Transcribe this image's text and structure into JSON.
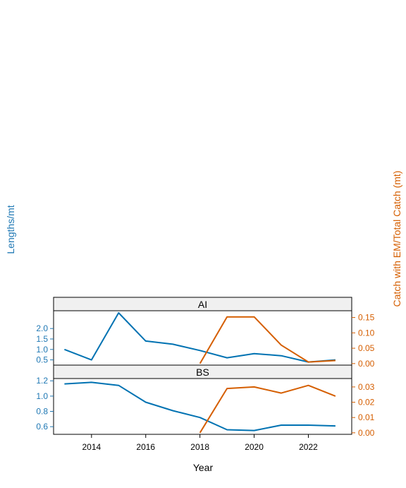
{
  "colors": {
    "left_axis": "#1f78b4",
    "right_axis": "#d55e00",
    "blue_series": "#0072b2",
    "orange_series": "#d55e00",
    "strip_bg": "#f0f0f0"
  },
  "axis_titles": {
    "x": "Year",
    "y_left": "Lengths/mt",
    "y_right": "Catch with EM/Total Catch (mt)"
  },
  "chart_data": [
    {
      "type": "line",
      "panel": "AI",
      "x": [
        2013,
        2014,
        2015,
        2016,
        2017,
        2018,
        2019,
        2020,
        2021,
        2022,
        2023
      ],
      "xlim": [
        2012.6,
        2023.6
      ],
      "x_ticks": [
        "2014",
        "2016",
        "2018",
        "2020",
        "2022"
      ],
      "left_axis": {
        "label": "Lengths/mt",
        "ylim": [
          0.25,
          2.85
        ],
        "ticks": [
          "0.5",
          "1.0",
          "1.5",
          "2.0"
        ]
      },
      "right_axis": {
        "label": "Catch with EM/Total Catch (mt)",
        "ylim": [
          -0.005,
          0.172
        ],
        "ticks": [
          "0.00",
          "0.05",
          "0.10",
          "0.15"
        ]
      },
      "series": [
        {
          "axis": "left",
          "x": [
            2013,
            2014,
            2015,
            2016,
            2017,
            2018,
            2019,
            2020,
            2021,
            2022,
            2023
          ],
          "values": [
            1.0,
            0.5,
            2.75,
            1.4,
            1.25,
            0.95,
            0.6,
            0.8,
            0.7,
            0.4,
            0.5
          ]
        },
        {
          "axis": "right",
          "x": [
            2018,
            2019,
            2020,
            2021,
            2022,
            2023
          ],
          "values": [
            0.0,
            0.152,
            0.152,
            0.06,
            0.005,
            0.01
          ]
        }
      ]
    },
    {
      "type": "line",
      "panel": "BS",
      "x": [
        2013,
        2014,
        2015,
        2016,
        2017,
        2018,
        2019,
        2020,
        2021,
        2022,
        2023
      ],
      "xlim": [
        2012.6,
        2023.6
      ],
      "x_ticks": [
        "2014",
        "2016",
        "2018",
        "2020",
        "2022"
      ],
      "left_axis": {
        "label": "Lengths/mt",
        "ylim": [
          0.5,
          1.23
        ],
        "ticks": [
          "0.6",
          "0.8",
          "1.0",
          "1.2"
        ]
      },
      "right_axis": {
        "label": "Catch with EM/Total Catch (mt)",
        "ylim": [
          -0.001,
          0.0355
        ],
        "ticks": [
          "0.00",
          "0.01",
          "0.02",
          "0.03"
        ]
      },
      "series": [
        {
          "axis": "left",
          "x": [
            2013,
            2014,
            2015,
            2016,
            2017,
            2018,
            2019,
            2020,
            2021,
            2022,
            2023
          ],
          "values": [
            1.16,
            1.18,
            1.14,
            0.92,
            0.81,
            0.72,
            0.56,
            0.55,
            0.62,
            0.62,
            0.61
          ]
        },
        {
          "axis": "right",
          "x": [
            2018,
            2019,
            2020,
            2021,
            2022,
            2023
          ],
          "values": [
            0.0,
            0.029,
            0.03,
            0.026,
            0.031,
            0.024
          ]
        }
      ]
    }
  ]
}
